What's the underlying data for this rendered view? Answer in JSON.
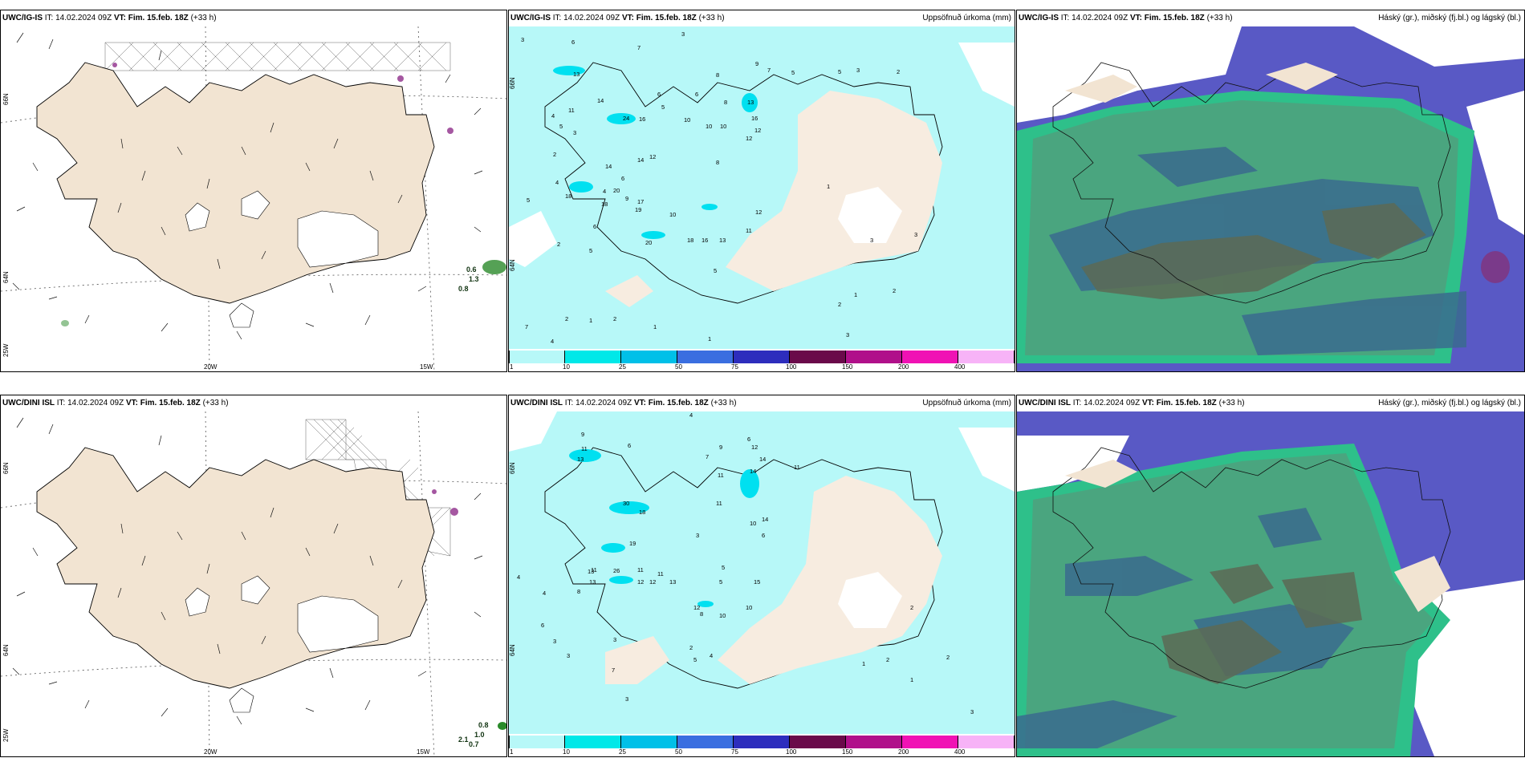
{
  "panels": {
    "tl": {
      "model": "UWC/IG-IS",
      "it_label": "IT:",
      "it_value": "14.02.2024 09Z",
      "vt_label": "VT:",
      "vt_value": "Fim. 15.feb. 18Z",
      "lead": "(+33 h)"
    },
    "tm": {
      "model": "UWC/IG-IS",
      "it_label": "IT:",
      "it_value": "14.02.2024 09Z",
      "vt_label": "VT:",
      "vt_value": "Fim. 15.feb. 18Z",
      "lead": "(+33 h)",
      "right_title": "Uppsöfnuð úrkoma (mm)"
    },
    "tr": {
      "model": "UWC/IG-IS",
      "it_label": "IT:",
      "it_value": "14.02.2024 09Z",
      "vt_label": "VT:",
      "vt_value": "Fim. 15.feb. 18Z",
      "lead": "(+33 h)",
      "right_title": "Háský (gr.), miðský (fj.bl.) og lágský (bl.)"
    },
    "bl": {
      "model": "UWC/DINI ISL",
      "it_label": "IT:",
      "it_value": "14.02.2024 09Z",
      "vt_label": "VT:",
      "vt_value": "Fim. 15.feb. 18Z",
      "lead": "(+33 h)"
    },
    "bm": {
      "model": "UWC/DINI ISL",
      "it_label": "IT:",
      "it_value": "14.02.2024 09Z",
      "vt_label": "VT:",
      "vt_value": "Fim. 15.feb. 18Z",
      "lead": "(+33 h)",
      "right_title": "Uppsöfnuð úrkoma (mm)"
    },
    "br": {
      "model": "UWC/DINI ISL",
      "it_label": "IT:",
      "it_value": "14.02.2024 09Z",
      "vt_label": "VT:",
      "vt_value": "Fim. 15.feb. 18Z",
      "lead": "(+33 h)",
      "right_title": "Háský (gr.), miðský (fj.bl.) og lágský (bl.)"
    }
  },
  "coords": {
    "lat66": "66N",
    "lat64": "64N",
    "lon25": "25W",
    "lon20": "20W",
    "lon15": "15W"
  },
  "colorbar": {
    "labels": [
      "1",
      "10",
      "25",
      "50",
      "75",
      "100",
      "150",
      "200",
      "400"
    ],
    "colors": [
      "#b7f8f8",
      "#00e8e8",
      "#00c0e8",
      "#3a6ee0",
      "#2d2dbd",
      "#6a0a4a",
      "#b0108a",
      "#f012b4",
      "#f7b3f7"
    ]
  },
  "precip": {
    "tm": [
      "3",
      "6",
      "7",
      "3",
      "13",
      "8",
      "9",
      "7",
      "5",
      "5",
      "3",
      "2",
      "14",
      "11",
      "6",
      "6",
      "10",
      "8",
      "13",
      "4",
      "3",
      "5",
      "5",
      "24",
      "16",
      "10",
      "10",
      "12",
      "16",
      "12",
      "2",
      "14",
      "12",
      "14",
      "6",
      "8",
      "4",
      "1",
      "4",
      "18",
      "20",
      "17",
      "19",
      "18",
      "9",
      "5",
      "12",
      "10",
      "6",
      "2",
      "20",
      "11",
      "18",
      "13",
      "16",
      "5",
      "3",
      "3",
      "5",
      "1",
      "2",
      "2",
      "2",
      "1",
      "1",
      "2",
      "7",
      "4",
      "3",
      "1"
    ],
    "bm": [
      "4",
      "9",
      "6",
      "6",
      "11",
      "13",
      "7",
      "9",
      "12",
      "11",
      "14",
      "14",
      "30",
      "18",
      "11",
      "11",
      "10",
      "14",
      "3",
      "6",
      "13",
      "19",
      "13",
      "26",
      "11",
      "12",
      "11",
      "12",
      "15",
      "10",
      "5",
      "5",
      "4",
      "11",
      "13",
      "12",
      "10",
      "8",
      "4",
      "8",
      "6",
      "2",
      "2",
      "3",
      "3",
      "2",
      "5",
      "4",
      "7",
      "2",
      "1",
      "1",
      "3",
      "3",
      "3"
    ]
  },
  "legend_vals": {
    "tl": [
      "0.6",
      "1.3",
      "0.8"
    ],
    "bl": [
      "0.8",
      "2.1",
      "1.0",
      "0.7"
    ]
  }
}
